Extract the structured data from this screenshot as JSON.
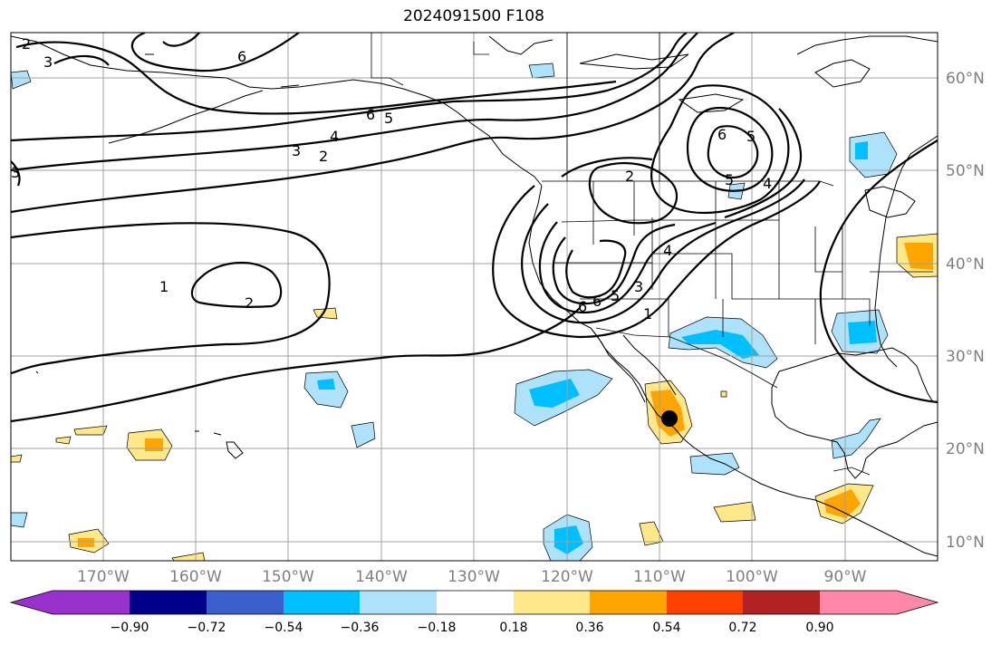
{
  "title": "2024091500 F108",
  "map": {
    "lat_ticks": [
      "60°N",
      "50°N",
      "40°N",
      "30°N",
      "20°N",
      "10°N"
    ],
    "lon_ticks": [
      "170°W",
      "160°W",
      "150°W",
      "140°W",
      "130°W",
      "120°W",
      "110°W",
      "100°W",
      "90°W"
    ],
    "contour_labels": [
      "2",
      "3",
      "6",
      "6",
      "5",
      "4",
      "3",
      "2",
      "3",
      "1",
      "2",
      "6",
      "2",
      "5",
      "6",
      "5",
      "4",
      "4",
      "3",
      "5",
      "6",
      "1"
    ],
    "marker": "filled-black-circle"
  },
  "colorbar": {
    "labels": [
      "−0.90",
      "−0.72",
      "−0.54",
      "−0.36",
      "−0.18",
      "0.18",
      "0.36",
      "0.54",
      "0.72",
      "0.90"
    ],
    "colors": [
      "#9932cc",
      "#00008b",
      "#3a5fcd",
      "#00bfff",
      "#aee2fb",
      "#ffffff",
      "#ffe88a",
      "#ffa500",
      "#ff4000",
      "#b22222",
      "#ff88aa"
    ]
  }
}
